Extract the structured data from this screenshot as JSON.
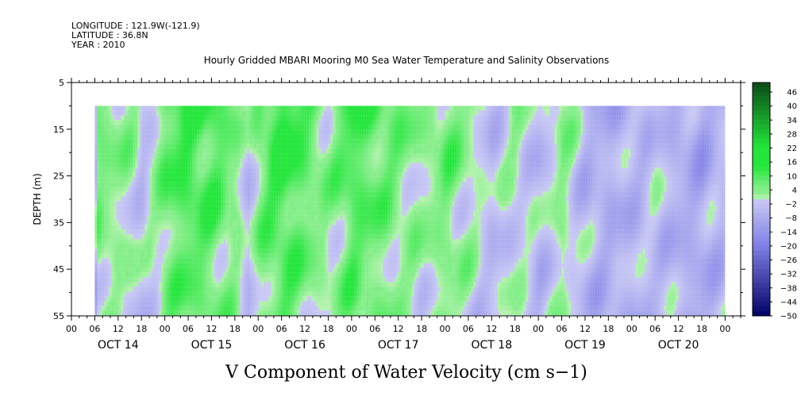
{
  "meta": {
    "longitude": "LONGITUDE : 121.9W(-121.9)",
    "latitude": "LATITUDE : 36.8N",
    "year": "YEAR : 2010"
  },
  "chart_data": {
    "type": "heatmap",
    "title": "Hourly Gridded MBARI Mooring M0 Sea Water Temperature and Salinity Observations",
    "xlabel": "V Component of Water Velocity (cm s−1)",
    "ylabel": "DEPTH (m)",
    "y_ticks": [
      5,
      15,
      25,
      35,
      45,
      55
    ],
    "ylim": [
      55,
      5
    ],
    "x_hour_ticks": [
      "00",
      "06",
      "12",
      "18",
      "00",
      "06",
      "12",
      "18",
      "00",
      "06",
      "12",
      "18",
      "00",
      "06",
      "12",
      "18",
      "00",
      "06",
      "12",
      "18",
      "00",
      "06",
      "12",
      "18",
      "00",
      "06",
      "12",
      "18",
      "00"
    ],
    "x_day_labels": [
      "OCT 14",
      "OCT 15",
      "OCT 16",
      "OCT 17",
      "OCT 18",
      "OCT 19",
      "OCT 20"
    ],
    "xlim_hours": [
      0,
      172
    ],
    "data_start_hour": 6,
    "data_end_hour": 168,
    "data_top_depth": 10,
    "colorbar": {
      "min": -50,
      "max": 50,
      "step": 6,
      "labels": [
        "46",
        "40",
        "34",
        "28",
        "22",
        "16",
        "10",
        "4",
        "−2",
        "−8",
        "−14",
        "−20",
        "−26",
        "−32",
        "−38",
        "−44",
        "−50"
      ]
    },
    "colors": {
      "positive_dark": "#0b4a16",
      "positive_bright": "#22e63a",
      "positive_light": "#b6f2b0",
      "negative_light": "#c9c9f5",
      "negative_mid": "#7f7fe6",
      "negative_dark": "#000066"
    },
    "field_profile": [
      {
        "hour": 6,
        "v": 8
      },
      {
        "hour": 9,
        "v": 6
      },
      {
        "hour": 12,
        "v": 4
      },
      {
        "hour": 15,
        "v": 3
      },
      {
        "hour": 18,
        "v": -3
      },
      {
        "hour": 21,
        "v": 2
      },
      {
        "hour": 24,
        "v": 10
      },
      {
        "hour": 30,
        "v": 14
      },
      {
        "hour": 36,
        "v": 12
      },
      {
        "hour": 42,
        "v": 6
      },
      {
        "hour": 45,
        "v": -4
      },
      {
        "hour": 48,
        "v": 8
      },
      {
        "hour": 54,
        "v": 16
      },
      {
        "hour": 60,
        "v": 10
      },
      {
        "hour": 66,
        "v": 4
      },
      {
        "hour": 72,
        "v": 13
      },
      {
        "hour": 78,
        "v": 10
      },
      {
        "hour": 84,
        "v": 6
      },
      {
        "hour": 90,
        "v": 3
      },
      {
        "hour": 96,
        "v": 8
      },
      {
        "hour": 102,
        "v": 3
      },
      {
        "hour": 108,
        "v": -4
      },
      {
        "hour": 114,
        "v": 2
      },
      {
        "hour": 120,
        "v": -5
      },
      {
        "hour": 126,
        "v": 5
      },
      {
        "hour": 132,
        "v": -6
      },
      {
        "hour": 138,
        "v": -8
      },
      {
        "hour": 144,
        "v": -6
      },
      {
        "hour": 150,
        "v": -3
      },
      {
        "hour": 156,
        "v": -8
      },
      {
        "hour": 162,
        "v": -10
      },
      {
        "hour": 168,
        "v": -4
      }
    ]
  }
}
